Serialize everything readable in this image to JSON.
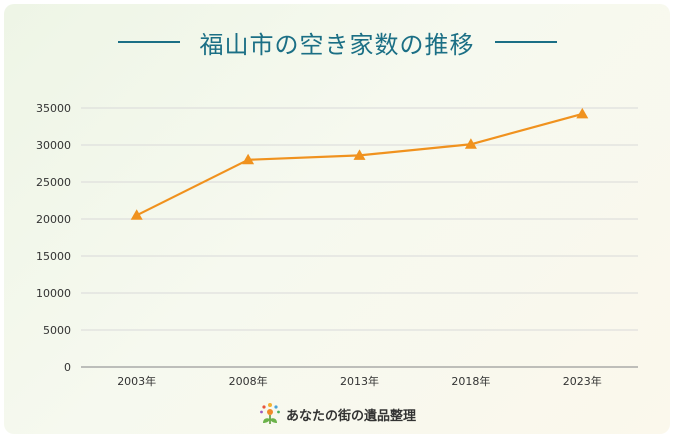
{
  "header": {
    "title": "福山市の空き家数の推移"
  },
  "footer": {
    "brand": "あなたの街の遺品整理"
  },
  "colors": {
    "line": "#f0921e",
    "title": "#1b6f85",
    "grid": "#d9d9d9"
  },
  "chart_data": {
    "type": "line",
    "title": "福山市の空き家数の推移",
    "categories": [
      "2003年",
      "2008年",
      "2013年",
      "2018年",
      "2023年"
    ],
    "series": [
      {
        "values": [
          20500,
          28000,
          28600,
          30100,
          34200
        ]
      }
    ],
    "ylim": [
      0,
      35000
    ],
    "yticks": [
      0,
      5000,
      10000,
      15000,
      20000,
      25000,
      30000,
      35000
    ],
    "marker": "triangle",
    "grid": true,
    "legend": "none"
  }
}
